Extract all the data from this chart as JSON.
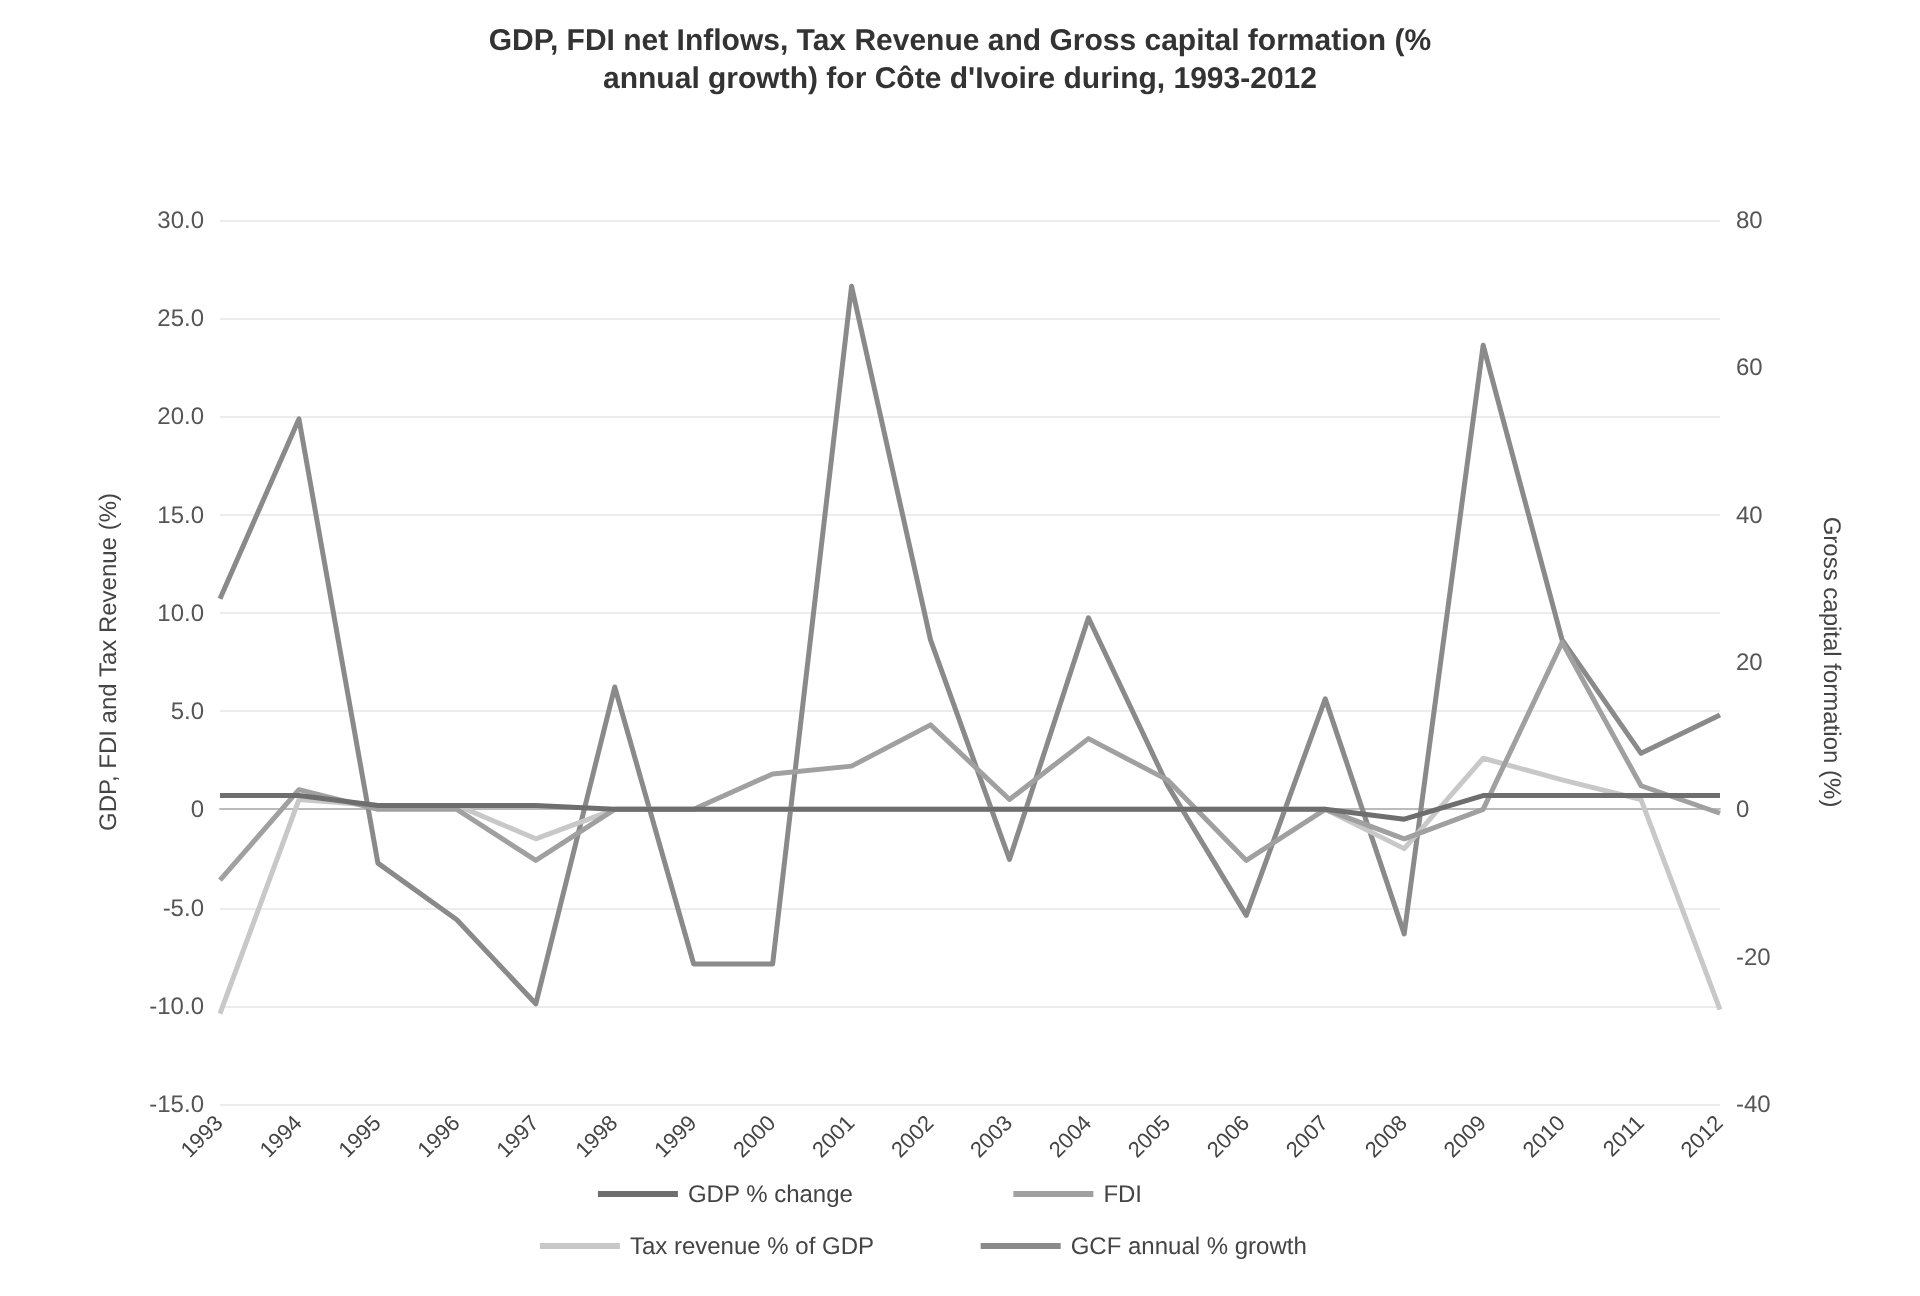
{
  "chart_data": {
    "type": "line",
    "title": "GDP, FDI net Inflows, Tax Revenue and Gross capital formation (%",
    "subtitle": "annual growth) for Côte d'Ivoire during, 1993-2012",
    "ylabel": "GDP, FDI and Tax Revenue (%)",
    "y2label": "Gross capital formation (%)",
    "categories": [
      "1993",
      "1994",
      "1995",
      "1996",
      "1997",
      "1998",
      "1999",
      "2000",
      "2001",
      "2002",
      "2003",
      "2004",
      "2005",
      "2006",
      "2007",
      "2008",
      "2009",
      "2010",
      "2011",
      "2012"
    ],
    "series": [
      {
        "name": "GDP % change",
        "color": "#6e6e6e",
        "values": [
          0.7,
          0.7,
          0.2,
          0.2,
          0.2,
          0,
          0,
          0,
          0,
          0,
          0,
          0,
          0,
          0,
          0,
          -0.5,
          0.7,
          0.7,
          0.7,
          0.7
        ]
      },
      {
        "name": "FDI",
        "color": "#a0a0a0",
        "values": [
          -3.6,
          1,
          0,
          0,
          -2.6,
          0,
          0,
          1.8,
          2.2,
          4.3,
          0.5,
          3.6,
          1.5,
          -2.6,
          0,
          -1.5,
          0,
          8.5,
          1.2,
          -0.2
        ]
      },
      {
        "name": "Tax revenue % of GDP",
        "color": "#c8c8c8",
        "values": [
          -10.4,
          0.5,
          0.2,
          0.2,
          -1.5,
          0,
          0,
          0,
          0,
          0,
          0,
          0,
          0,
          0,
          0,
          -2,
          2.6,
          1.5,
          0.5,
          -10.2
        ]
      },
      {
        "name": "GCF annual % growth",
        "color": "#8a8a8a",
        "axis": "y2",
        "values": [
          28.6,
          53,
          -7.3,
          -15,
          -26.4,
          16.6,
          -21,
          -21,
          71,
          23,
          -6.8,
          26,
          3.3,
          -14.4,
          15,
          -16.9,
          63,
          23,
          7.6,
          12.8
        ]
      }
    ],
    "ylim": [
      -15,
      30
    ],
    "yticks": [
      {
        "value": -15,
        "label": "-15.0"
      },
      {
        "value": -10,
        "label": "-10.0"
      },
      {
        "value": -5,
        "label": "-5.0"
      },
      0,
      {
        "value": 5,
        "label": "5.0"
      },
      {
        "value": 10,
        "label": "10.0"
      },
      {
        "value": 15,
        "label": "15.0"
      },
      {
        "value": 20,
        "label": "20.0"
      },
      {
        "value": 25,
        "label": "25.0"
      },
      {
        "value": 30,
        "label": "30.0"
      }
    ],
    "y2lim": [
      -40,
      80
    ],
    "y2ticks": [
      -40,
      -20,
      0,
      20,
      40,
      60,
      80
    ],
    "legend": "bottom",
    "marker": "none",
    "line_style": "solid",
    "grid": "y"
  }
}
